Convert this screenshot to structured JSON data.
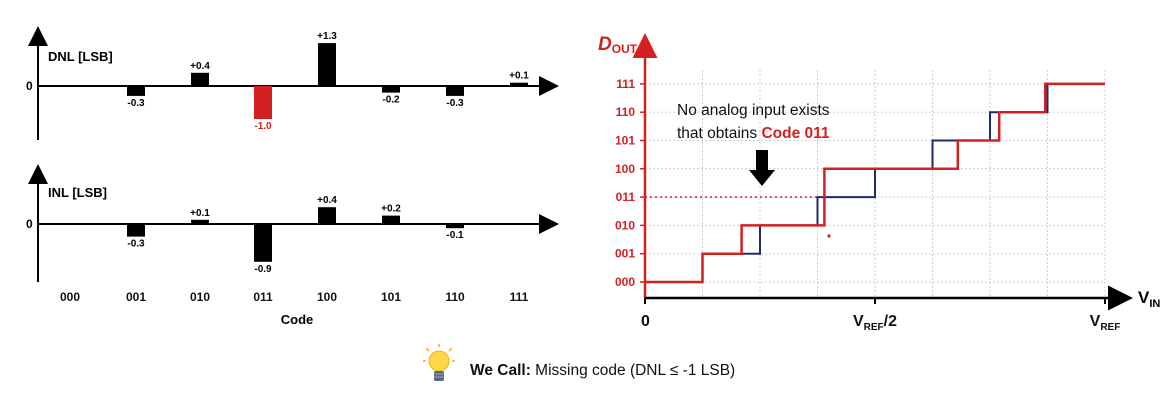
{
  "chart_data": [
    {
      "type": "bar",
      "ylabel": "DNL [LSB]",
      "zero_label": "0",
      "categories": [
        "000",
        "001",
        "010",
        "011",
        "100",
        "101",
        "110",
        "111"
      ],
      "values": [
        null,
        -0.3,
        0.4,
        -1.0,
        1.3,
        -0.2,
        -0.3,
        0.1
      ],
      "value_labels": [
        "",
        "-0.3",
        "+0.4",
        "-1.0",
        "+1.3",
        "-0.2",
        "-0.3",
        "+0.1"
      ],
      "highlight_index": 3,
      "highlight_color": "#d42020",
      "bar_color": "#000000"
    },
    {
      "type": "bar",
      "ylabel": "INL [LSB]",
      "zero_label": "0",
      "xlabel": "Code",
      "categories": [
        "000",
        "001",
        "010",
        "011",
        "100",
        "101",
        "110",
        "111"
      ],
      "values": [
        null,
        -0.3,
        0.1,
        -0.9,
        0.4,
        0.2,
        -0.1,
        null
      ],
      "value_labels": [
        "",
        "-0.3",
        "+0.1",
        "-0.9",
        "+0.4",
        "+0.2",
        "-0.1",
        ""
      ],
      "bar_color": "#000000"
    },
    {
      "type": "line",
      "ylabel_main": "D",
      "ylabel_sub": "OUT",
      "xlabel_main": "V",
      "xlabel_sub": "IN",
      "y_ticks": [
        "000",
        "001",
        "010",
        "011",
        "100",
        "101",
        "110",
        "111"
      ],
      "x_tick_labels": [
        {
          "value": 0,
          "main": "0",
          "sub": ""
        },
        {
          "value": 0.5,
          "main": "V",
          "sub": "REF",
          "suffix": "/2"
        },
        {
          "value": 1.0,
          "main": "V",
          "sub": "REF",
          "suffix": ""
        }
      ],
      "axis_color": "#d42020",
      "grid": true,
      "series": [
        {
          "color": "#1f2a6b",
          "x": [
            0,
            0.125,
            0.125,
            0.25,
            0.25,
            0.375,
            0.375,
            0.5,
            0.5,
            0.625,
            0.625,
            0.75,
            0.75,
            0.875,
            0.875,
            1.0
          ],
          "y": [
            0,
            0,
            1,
            1,
            2,
            2,
            3,
            3,
            4,
            4,
            5,
            5,
            6,
            6,
            7,
            7
          ]
        },
        {
          "color": "#d42020",
          "x": [
            0,
            0.125,
            0.125,
            0.21,
            0.21,
            0.39,
            0.39,
            0.51,
            0.51,
            0.68,
            0.68,
            0.77,
            0.77,
            0.87,
            0.87,
            1.0
          ],
          "y": [
            0,
            0,
            1,
            1,
            2,
            2,
            4,
            4,
            4,
            4,
            5,
            5,
            6,
            6,
            7,
            7
          ]
        }
      ],
      "missing_code_level": 3,
      "annotation_line1": "No analog input exists",
      "annotation_line2_prefix": "that obtains ",
      "annotation_line2_highlight": "Code 011",
      "annotation_highlight_color": "#d42020"
    }
  ],
  "caption": {
    "bold": "We Call:",
    "text": " Missing code (DNL ≤ -1 LSB)"
  },
  "icons": [
    "lightbulb-icon"
  ]
}
